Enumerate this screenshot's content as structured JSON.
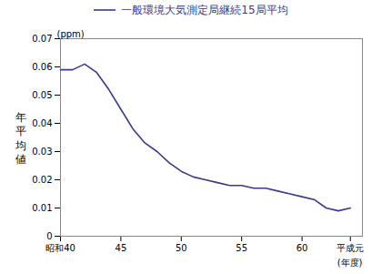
{
  "chart_data": {
    "type": "line",
    "ylabel": "年平均値",
    "xlabel": "(年度)",
    "annotations": [
      "(ppm)"
    ],
    "x": [
      40,
      41,
      42,
      43,
      44,
      45,
      46,
      47,
      48,
      49,
      50,
      51,
      52,
      53,
      54,
      55,
      56,
      57,
      58,
      59,
      60,
      61,
      62,
      63,
      64
    ],
    "series": [
      {
        "name": "一般環境大気測定局継続15局平均",
        "color": "#3a3a8c",
        "values": [
          0.059,
          0.059,
          0.061,
          0.058,
          0.052,
          0.045,
          0.038,
          0.033,
          0.03,
          0.026,
          0.023,
          0.021,
          0.02,
          0.019,
          0.018,
          0.018,
          0.017,
          0.017,
          0.016,
          0.015,
          0.014,
          0.013,
          0.01,
          0.009,
          0.01
        ]
      }
    ],
    "xlim": [
      40,
      65
    ],
    "xticks": [
      {
        "value": 40,
        "label": "昭和40"
      },
      45,
      50,
      55,
      60,
      {
        "value": 64,
        "label": "平成元"
      }
    ],
    "ylim": [
      0,
      0.07
    ],
    "yticks": [
      0,
      0.01,
      0.02,
      0.03,
      0.04,
      0.05,
      0.06,
      0.07
    ],
    "grid": false,
    "legend": "top"
  }
}
